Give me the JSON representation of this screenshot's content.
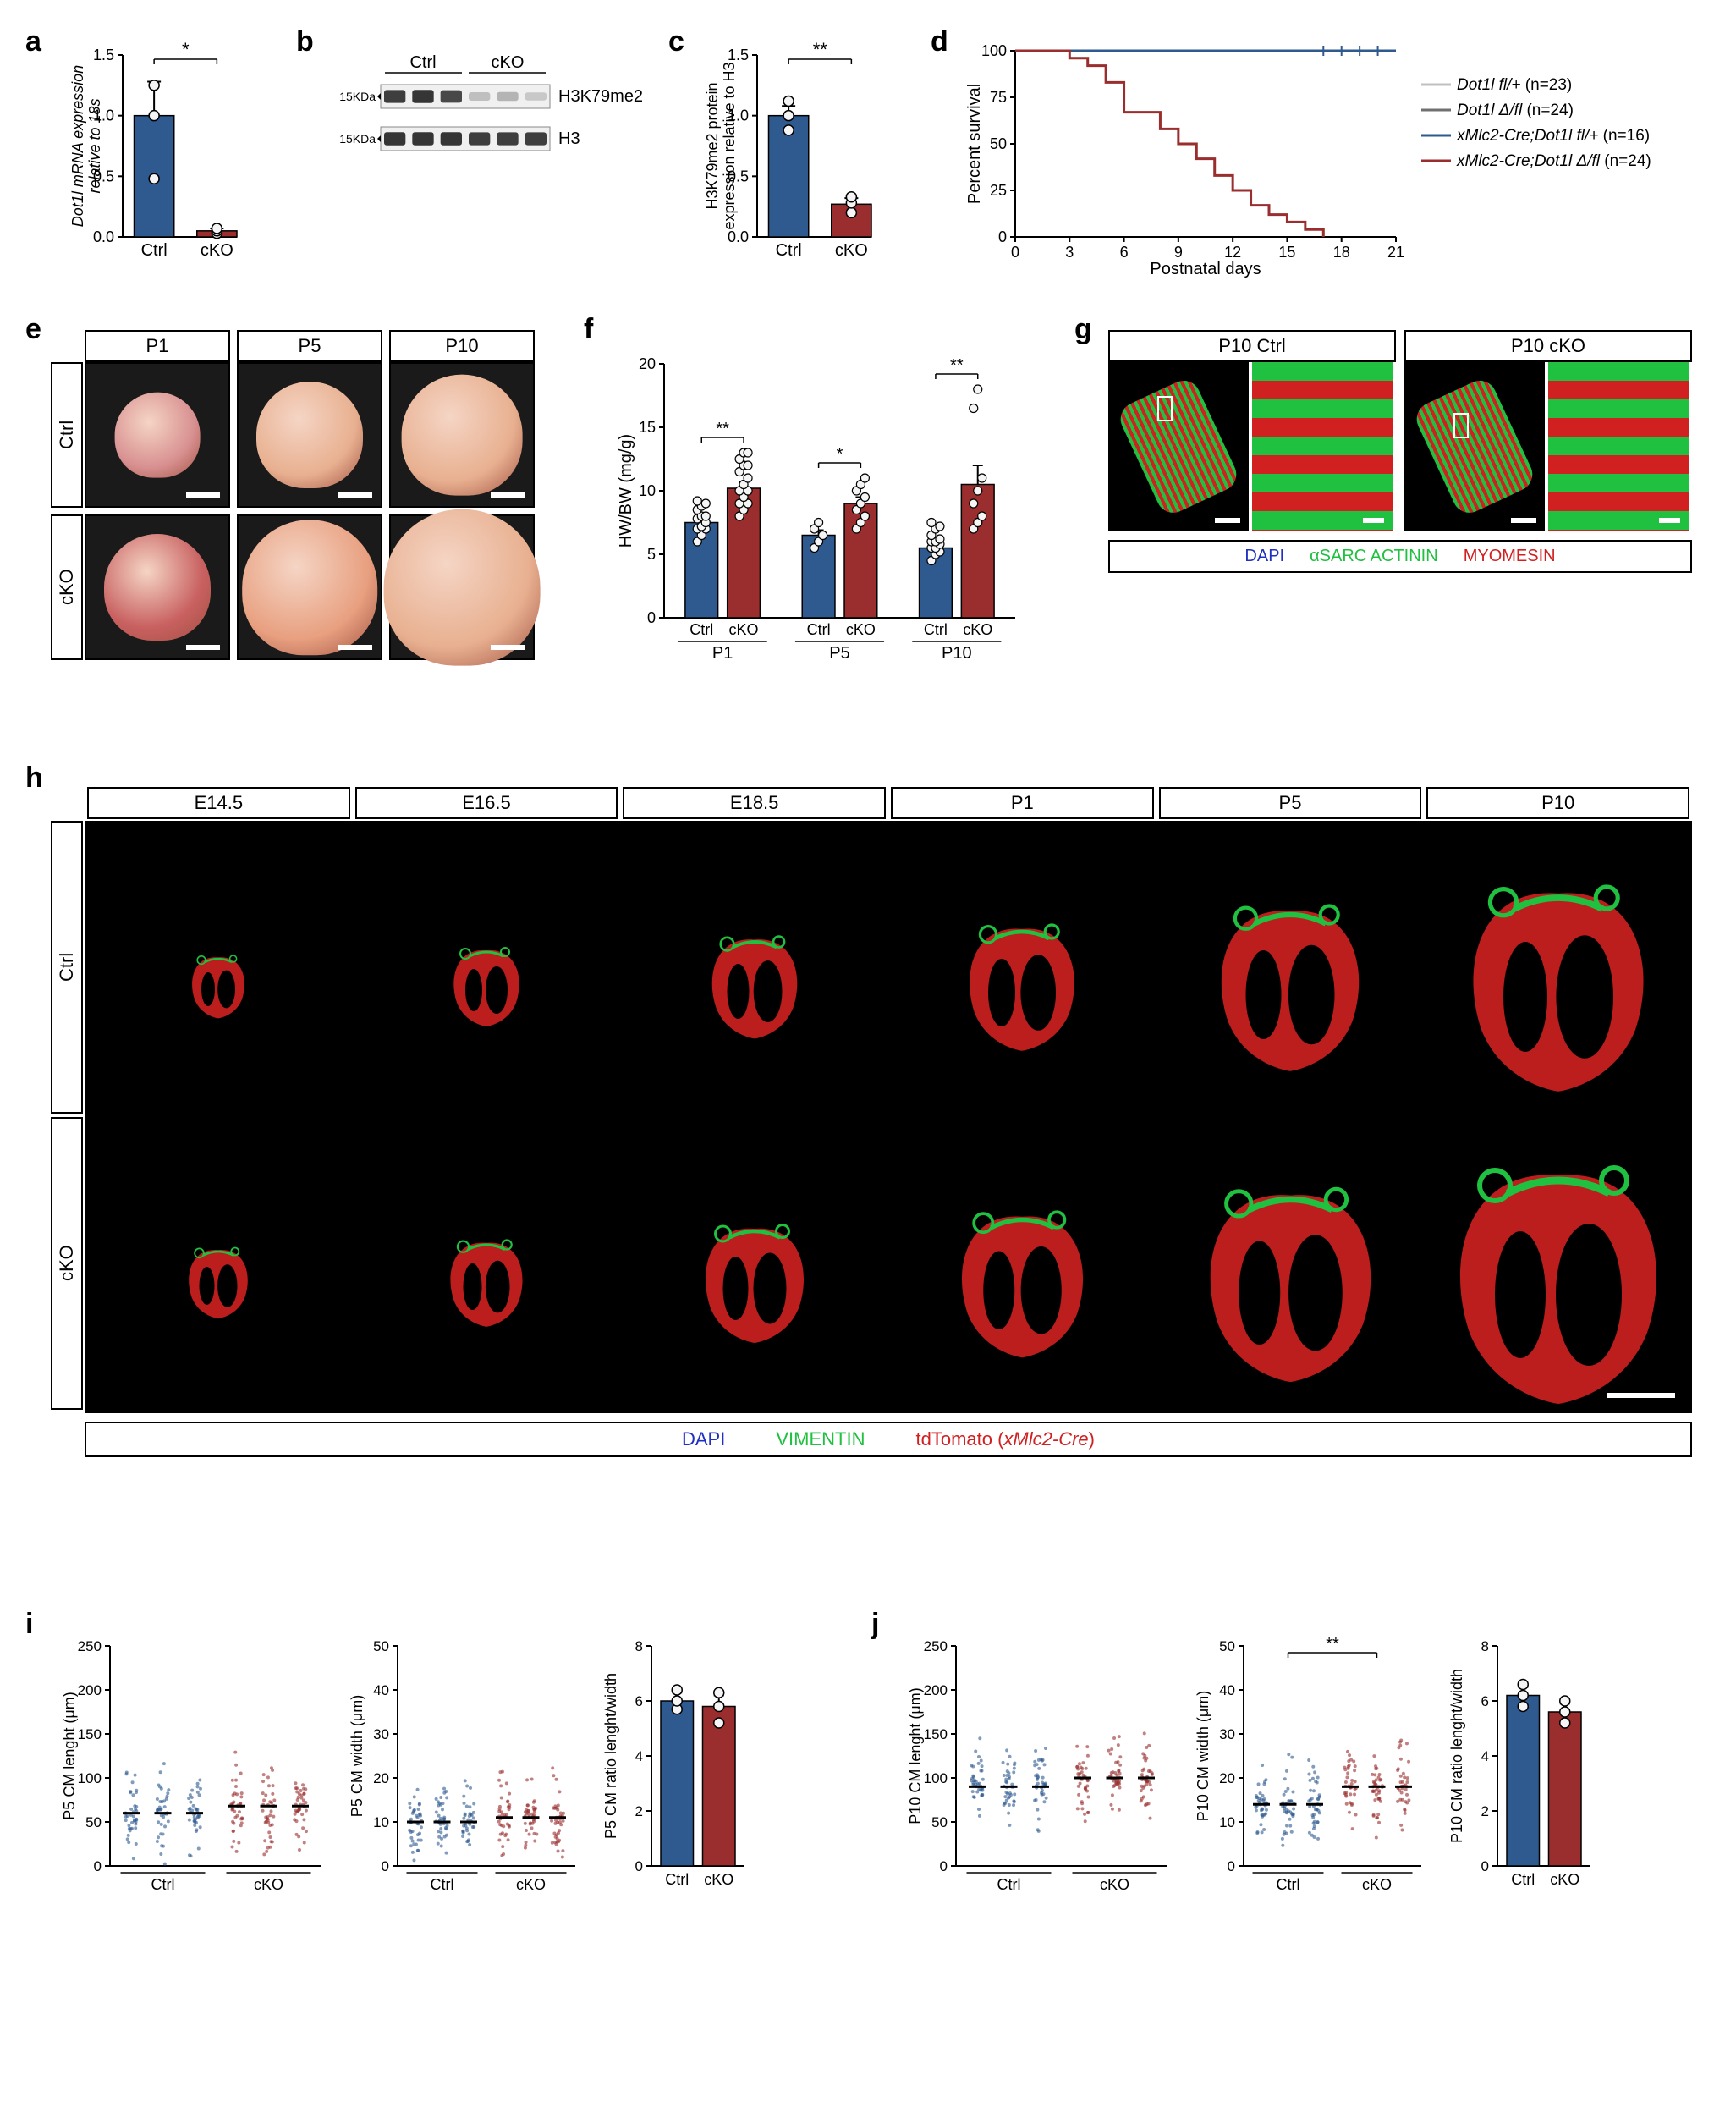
{
  "colors": {
    "ctrl": "#2e5a8f",
    "cko": "#9a2d2d",
    "bg": "#ffffff",
    "axis": "#000000",
    "grid": "#e0e0e0",
    "point_fill": "#f5f5f5",
    "point_stroke": "#000000",
    "blot_dark": "#3a3a3a",
    "blot_light": "#888888",
    "dapi": "#2030c0",
    "vimentin": "#20c040",
    "tdtomato": "#d02020",
    "actinin": "#20c040",
    "myomesin": "#d02020"
  },
  "panel_a": {
    "label": "a",
    "ylabel": "Dot1l mRNA expression\nrelative to 18s",
    "ylim": [
      0,
      1.5
    ],
    "ytick_step": 0.5,
    "groups": [
      "Ctrl",
      "cKO"
    ],
    "bars": [
      {
        "mean": 1.0,
        "sem": 0.28,
        "color": "#2e5a8f",
        "points": [
          0.48,
          1.0,
          1.25
        ]
      },
      {
        "mean": 0.05,
        "sem": 0.02,
        "color": "#9a2d2d",
        "points": [
          0.03,
          0.05,
          0.07
        ]
      }
    ],
    "sig": "*"
  },
  "panel_b": {
    "label": "b",
    "groups": [
      "Ctrl",
      "cKO"
    ],
    "rows": [
      {
        "marker": "15KDa",
        "name": "H3K79me2",
        "lanes_ctrl": [
          0.9,
          0.95,
          0.85
        ],
        "lanes_cko": [
          0.25,
          0.3,
          0.2
        ]
      },
      {
        "marker": "15KDa",
        "name": "H3",
        "lanes_ctrl": [
          0.95,
          0.95,
          0.95
        ],
        "lanes_cko": [
          0.9,
          0.9,
          0.9
        ]
      }
    ]
  },
  "panel_c": {
    "label": "c",
    "ylabel": "H3K79me2 protein\nexpression relative to H3",
    "ylim": [
      0,
      1.5
    ],
    "ytick_step": 0.5,
    "groups": [
      "Ctrl",
      "cKO"
    ],
    "bars": [
      {
        "mean": 1.0,
        "sem": 0.08,
        "color": "#2e5a8f",
        "points": [
          0.88,
          1.0,
          1.12
        ]
      },
      {
        "mean": 0.27,
        "sem": 0.05,
        "color": "#9a2d2d",
        "points": [
          0.2,
          0.28,
          0.33
        ]
      }
    ],
    "sig": "**"
  },
  "panel_d": {
    "label": "d",
    "ylabel": "Percent survival",
    "xlabel": "Postnatal days",
    "ylim": [
      0,
      100
    ],
    "ytick_step": 25,
    "xlim": [
      0,
      21
    ],
    "xtick_step": 3,
    "series": [
      {
        "name": "Dot1l fl/+ (n=23)",
        "color": "#c0c0c0",
        "data": [
          [
            0,
            100
          ],
          [
            21,
            100
          ]
        ]
      },
      {
        "name": "Dot1l Δ/fl (n=24)",
        "color": "#707070",
        "data": [
          [
            0,
            100
          ],
          [
            21,
            100
          ]
        ]
      },
      {
        "name": "xMlc2-Cre;Dot1l fl/+ (n=16)",
        "color": "#2e5a8f",
        "data": [
          [
            0,
            100
          ],
          [
            21,
            100
          ]
        ],
        "censored": [
          17,
          18,
          19,
          20
        ]
      },
      {
        "name": "xMlc2-Cre;Dot1l Δ/fl (n=24)",
        "color": "#9a2d2d",
        "data": [
          [
            0,
            100
          ],
          [
            3,
            96
          ],
          [
            4,
            92
          ],
          [
            5,
            83
          ],
          [
            6,
            67
          ],
          [
            7,
            67
          ],
          [
            8,
            58
          ],
          [
            9,
            50
          ],
          [
            10,
            42
          ],
          [
            11,
            33
          ],
          [
            12,
            25
          ],
          [
            13,
            17
          ],
          [
            14,
            12
          ],
          [
            15,
            8
          ],
          [
            16,
            4
          ],
          [
            17,
            0
          ]
        ]
      }
    ],
    "legend_items": [
      "Dot1l fl/+ (n=23)",
      "Dot1l Δ/fl (n=24)",
      "xMlc2-Cre;Dot1l fl/+ (n=16)",
      "xMlc2-Cre;Dot1l Δ/fl (n=24)"
    ]
  },
  "panel_e": {
    "label": "e",
    "cols": [
      "P1",
      "P5",
      "P10"
    ],
    "rows": [
      "Ctrl",
      "cKO"
    ],
    "heart_colors_ctrl": [
      "#d89090",
      "#e8b090",
      "#e8b090"
    ],
    "heart_colors_cko": [
      "#c86060",
      "#e8a080",
      "#e8b090"
    ],
    "heart_sizes_ctrl": [
      60,
      75,
      85
    ],
    "heart_sizes_cko": [
      75,
      95,
      110
    ]
  },
  "panel_f": {
    "label": "f",
    "ylabel": "HW/BW (mg/g)",
    "ylim": [
      0,
      20
    ],
    "ytick_step": 5,
    "groups": [
      {
        "stage": "P1",
        "pair": [
          {
            "name": "Ctrl",
            "mean": 7.5,
            "sem": 0.3,
            "color": "#2e5a8f",
            "points": [
              6,
              6.5,
              7,
              7,
              7.2,
              7.5,
              7.8,
              8,
              8,
              8.5,
              8.8,
              9,
              9.2
            ]
          },
          {
            "name": "cKO",
            "mean": 10.2,
            "sem": 0.5,
            "color": "#9a2d2d",
            "points": [
              8,
              8.5,
              9,
              9,
              9.5,
              10,
              10,
              10.5,
              11,
              11.5,
              12,
              12,
              12.5,
              13,
              13
            ]
          }
        ],
        "sig": "**"
      },
      {
        "stage": "P5",
        "pair": [
          {
            "name": "Ctrl",
            "mean": 6.5,
            "sem": 0.4,
            "color": "#2e5a8f",
            "points": [
              5.5,
              6,
              6.5,
              7,
              7.5
            ]
          },
          {
            "name": "cKO",
            "mean": 9.0,
            "sem": 0.5,
            "color": "#9a2d2d",
            "points": [
              7,
              7.5,
              8,
              8.5,
              9,
              9.5,
              10,
              10.5,
              11
            ]
          }
        ],
        "sig": "*"
      },
      {
        "stage": "P10",
        "pair": [
          {
            "name": "Ctrl",
            "mean": 5.5,
            "sem": 0.3,
            "color": "#2e5a8f",
            "points": [
              4.5,
              5,
              5.2,
              5.5,
              5.5,
              5.8,
              6,
              6,
              6.2,
              6.5,
              7,
              7.2,
              7.5
            ]
          },
          {
            "name": "cKO",
            "mean": 10.5,
            "sem": 1.5,
            "color": "#9a2d2d",
            "points": [
              7,
              7.5,
              8,
              9,
              10,
              11,
              16.5,
              18
            ]
          }
        ],
        "sig": "**"
      }
    ]
  },
  "panel_g": {
    "label": "g",
    "cols": [
      "P10 Ctrl",
      "P10 cKO"
    ],
    "stains": [
      {
        "name": "DAPI",
        "color": "#2030c0"
      },
      {
        "name": "αSARC ACTININ",
        "color": "#20c040"
      },
      {
        "name": "MYOMESIN",
        "color": "#d02020"
      }
    ]
  },
  "panel_h": {
    "label": "h",
    "cols": [
      "E14.5",
      "E16.5",
      "E18.5",
      "P1",
      "P5",
      "P10"
    ],
    "rows": [
      "Ctrl",
      "cKO"
    ],
    "heart_sizes_ctrl": [
      80,
      100,
      130,
      160,
      210,
      260
    ],
    "heart_sizes_cko": [
      90,
      110,
      150,
      185,
      245,
      300
    ],
    "stains": [
      {
        "name": "DAPI",
        "color": "#2030c0"
      },
      {
        "name": "VIMENTIN",
        "color": "#20c040"
      },
      {
        "name": "tdTomato (xMlc2-Cre)",
        "color": "#d02020"
      }
    ]
  },
  "panel_i": {
    "label": "i",
    "stage": "P5",
    "charts": [
      {
        "ylabel": "P5 CM lenght (μm)",
        "ylim": [
          0,
          250
        ],
        "ytick_step": 50,
        "violins": [
          {
            "group": "Ctrl",
            "color": "#2e5a8f",
            "n": 3,
            "median": 60
          },
          {
            "group": "cKO",
            "color": "#9a2d2d",
            "n": 3,
            "median": 68
          }
        ]
      },
      {
        "ylabel": "P5 CM width (μm)",
        "ylim": [
          0,
          50
        ],
        "ytick_step": 10,
        "violins": [
          {
            "group": "Ctrl",
            "color": "#2e5a8f",
            "n": 3,
            "median": 10
          },
          {
            "group": "cKO",
            "color": "#9a2d2d",
            "n": 3,
            "median": 11
          }
        ]
      },
      {
        "ylabel": "P5 CM ratio lenght/width",
        "ylim": [
          0,
          8
        ],
        "ytick_step": 2,
        "type": "bar",
        "bars": [
          {
            "name": "Ctrl",
            "mean": 6.0,
            "sem": 0.3,
            "color": "#2e5a8f",
            "points": [
              5.7,
              6.0,
              6.4
            ]
          },
          {
            "name": "cKO",
            "mean": 5.8,
            "sem": 0.4,
            "color": "#9a2d2d",
            "points": [
              5.2,
              5.8,
              6.3
            ]
          }
        ]
      }
    ]
  },
  "panel_j": {
    "label": "j",
    "stage": "P10",
    "charts": [
      {
        "ylabel": "P10 CM lenght (μm)",
        "ylim": [
          0,
          250
        ],
        "ytick_step": 50,
        "violins": [
          {
            "group": "Ctrl",
            "color": "#2e5a8f",
            "n": 3,
            "median": 90
          },
          {
            "group": "cKO",
            "color": "#9a2d2d",
            "n": 3,
            "median": 100
          }
        ]
      },
      {
        "ylabel": "P10 CM width (μm)",
        "ylim": [
          0,
          50
        ],
        "ytick_step": 10,
        "sig": "**",
        "violins": [
          {
            "group": "Ctrl",
            "color": "#2e5a8f",
            "n": 3,
            "median": 14
          },
          {
            "group": "cKO",
            "color": "#9a2d2d",
            "n": 3,
            "median": 18
          }
        ]
      },
      {
        "ylabel": "P10 CM ratio lenght/width",
        "ylim": [
          0,
          8
        ],
        "ytick_step": 2,
        "type": "bar",
        "bars": [
          {
            "name": "Ctrl",
            "mean": 6.2,
            "sem": 0.3,
            "color": "#2e5a8f",
            "points": [
              5.8,
              6.2,
              6.6
            ]
          },
          {
            "name": "cKO",
            "mean": 5.6,
            "sem": 0.3,
            "color": "#9a2d2d",
            "points": [
              5.2,
              5.6,
              6.0
            ]
          }
        ]
      }
    ]
  }
}
